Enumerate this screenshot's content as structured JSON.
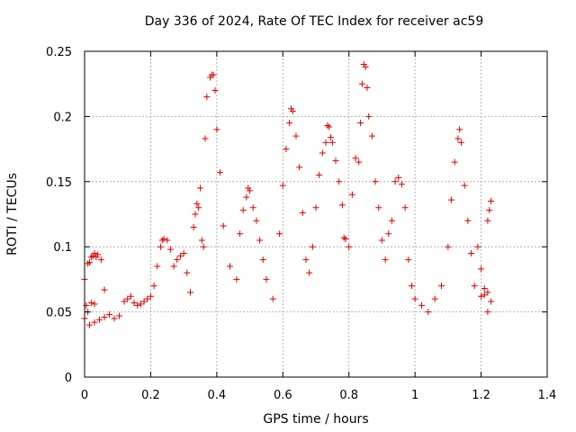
{
  "chart_data": {
    "type": "scatter",
    "title": "Day 336 of 2024, Rate Of TEC Index for receiver ac59",
    "xlabel": "GPS time / hours",
    "ylabel": "ROTI / TECUs",
    "xlim": [
      0,
      1.4
    ],
    "ylim": [
      0,
      0.25
    ],
    "x_ticks": [
      0,
      0.2,
      0.4,
      0.6,
      0.8,
      1,
      1.2,
      1.4
    ],
    "x_tick_labels": [
      "0",
      "0.2",
      "0.4",
      "0.6",
      "0.8",
      "1",
      "1.2",
      "1.4"
    ],
    "y_ticks": [
      0,
      0.05,
      0.1,
      0.15,
      0.2,
      0.25
    ],
    "y_tick_labels": [
      "0",
      "0.05",
      "0.1",
      "0.15",
      "0.2",
      "0.25"
    ],
    "grid": true,
    "marker": "plus",
    "marker_color": "#e00000",
    "series": [
      {
        "name": "ROTI",
        "points": [
          [
            0.0,
            0.075
          ],
          [
            0.01,
            0.087
          ],
          [
            0.015,
            0.088
          ],
          [
            0.02,
            0.092
          ],
          [
            0.025,
            0.093
          ],
          [
            0.03,
            0.095
          ],
          [
            0.035,
            0.092
          ],
          [
            0.04,
            0.094
          ],
          [
            0.05,
            0.09
          ],
          [
            0.06,
            0.067
          ],
          [
            0.005,
            0.055
          ],
          [
            0.02,
            0.057
          ],
          [
            0.03,
            0.056
          ],
          [
            0.01,
            0.05
          ],
          [
            0.0,
            0.045
          ],
          [
            0.015,
            0.04
          ],
          [
            0.03,
            0.042
          ],
          [
            0.045,
            0.044
          ],
          [
            0.06,
            0.046
          ],
          [
            0.075,
            0.048
          ],
          [
            0.09,
            0.045
          ],
          [
            0.105,
            0.047
          ],
          [
            0.12,
            0.058
          ],
          [
            0.13,
            0.06
          ],
          [
            0.14,
            0.062
          ],
          [
            0.15,
            0.057
          ],
          [
            0.16,
            0.055
          ],
          [
            0.17,
            0.056
          ],
          [
            0.18,
            0.058
          ],
          [
            0.19,
            0.06
          ],
          [
            0.2,
            0.062
          ],
          [
            0.21,
            0.07
          ],
          [
            0.22,
            0.085
          ],
          [
            0.23,
            0.1
          ],
          [
            0.235,
            0.105
          ],
          [
            0.24,
            0.106
          ],
          [
            0.25,
            0.105
          ],
          [
            0.26,
            0.098
          ],
          [
            0.27,
            0.085
          ],
          [
            0.28,
            0.09
          ],
          [
            0.29,
            0.093
          ],
          [
            0.3,
            0.095
          ],
          [
            0.31,
            0.08
          ],
          [
            0.32,
            0.065
          ],
          [
            0.33,
            0.115
          ],
          [
            0.335,
            0.125
          ],
          [
            0.34,
            0.133
          ],
          [
            0.345,
            0.13
          ],
          [
            0.35,
            0.145
          ],
          [
            0.355,
            0.105
          ],
          [
            0.36,
            0.1
          ],
          [
            0.365,
            0.183
          ],
          [
            0.37,
            0.215
          ],
          [
            0.38,
            0.23
          ],
          [
            0.385,
            0.232
          ],
          [
            0.39,
            0.232
          ],
          [
            0.395,
            0.22
          ],
          [
            0.4,
            0.19
          ],
          [
            0.41,
            0.157
          ],
          [
            0.42,
            0.116
          ],
          [
            0.44,
            0.085
          ],
          [
            0.46,
            0.075
          ],
          [
            0.47,
            0.11
          ],
          [
            0.48,
            0.128
          ],
          [
            0.49,
            0.138
          ],
          [
            0.495,
            0.145
          ],
          [
            0.5,
            0.143
          ],
          [
            0.51,
            0.13
          ],
          [
            0.52,
            0.12
          ],
          [
            0.53,
            0.105
          ],
          [
            0.54,
            0.09
          ],
          [
            0.55,
            0.075
          ],
          [
            0.57,
            0.06
          ],
          [
            0.59,
            0.11
          ],
          [
            0.6,
            0.147
          ],
          [
            0.61,
            0.175
          ],
          [
            0.62,
            0.195
          ],
          [
            0.625,
            0.206
          ],
          [
            0.63,
            0.204
          ],
          [
            0.64,
            0.185
          ],
          [
            0.65,
            0.161
          ],
          [
            0.66,
            0.126
          ],
          [
            0.67,
            0.09
          ],
          [
            0.68,
            0.08
          ],
          [
            0.69,
            0.1
          ],
          [
            0.7,
            0.13
          ],
          [
            0.71,
            0.155
          ],
          [
            0.72,
            0.172
          ],
          [
            0.73,
            0.18
          ],
          [
            0.735,
            0.193
          ],
          [
            0.74,
            0.192
          ],
          [
            0.745,
            0.184
          ],
          [
            0.75,
            0.18
          ],
          [
            0.76,
            0.166
          ],
          [
            0.77,
            0.15
          ],
          [
            0.78,
            0.132
          ],
          [
            0.785,
            0.107
          ],
          [
            0.79,
            0.106
          ],
          [
            0.8,
            0.1
          ],
          [
            0.81,
            0.14
          ],
          [
            0.82,
            0.168
          ],
          [
            0.83,
            0.165
          ],
          [
            0.835,
            0.195
          ],
          [
            0.84,
            0.225
          ],
          [
            0.845,
            0.24
          ],
          [
            0.85,
            0.238
          ],
          [
            0.855,
            0.222
          ],
          [
            0.86,
            0.2
          ],
          [
            0.87,
            0.185
          ],
          [
            0.88,
            0.15
          ],
          [
            0.89,
            0.13
          ],
          [
            0.9,
            0.105
          ],
          [
            0.91,
            0.09
          ],
          [
            0.92,
            0.11
          ],
          [
            0.93,
            0.12
          ],
          [
            0.94,
            0.15
          ],
          [
            0.95,
            0.153
          ],
          [
            0.96,
            0.148
          ],
          [
            0.97,
            0.13
          ],
          [
            0.98,
            0.09
          ],
          [
            0.99,
            0.07
          ],
          [
            1.0,
            0.06
          ],
          [
            1.02,
            0.055
          ],
          [
            1.04,
            0.05
          ],
          [
            1.06,
            0.06
          ],
          [
            1.08,
            0.07
          ],
          [
            1.1,
            0.1
          ],
          [
            1.11,
            0.136
          ],
          [
            1.12,
            0.165
          ],
          [
            1.13,
            0.183
          ],
          [
            1.135,
            0.19
          ],
          [
            1.14,
            0.18
          ],
          [
            1.15,
            0.147
          ],
          [
            1.16,
            0.12
          ],
          [
            1.17,
            0.095
          ],
          [
            1.18,
            0.07
          ],
          [
            1.19,
            0.1
          ],
          [
            1.2,
            0.083
          ],
          [
            1.21,
            0.068
          ],
          [
            1.22,
            0.12
          ],
          [
            1.225,
            0.128
          ],
          [
            1.23,
            0.135
          ],
          [
            1.22,
            0.065
          ],
          [
            1.21,
            0.063
          ],
          [
            1.2,
            0.062
          ],
          [
            1.23,
            0.058
          ],
          [
            1.22,
            0.05
          ]
        ]
      }
    ]
  }
}
